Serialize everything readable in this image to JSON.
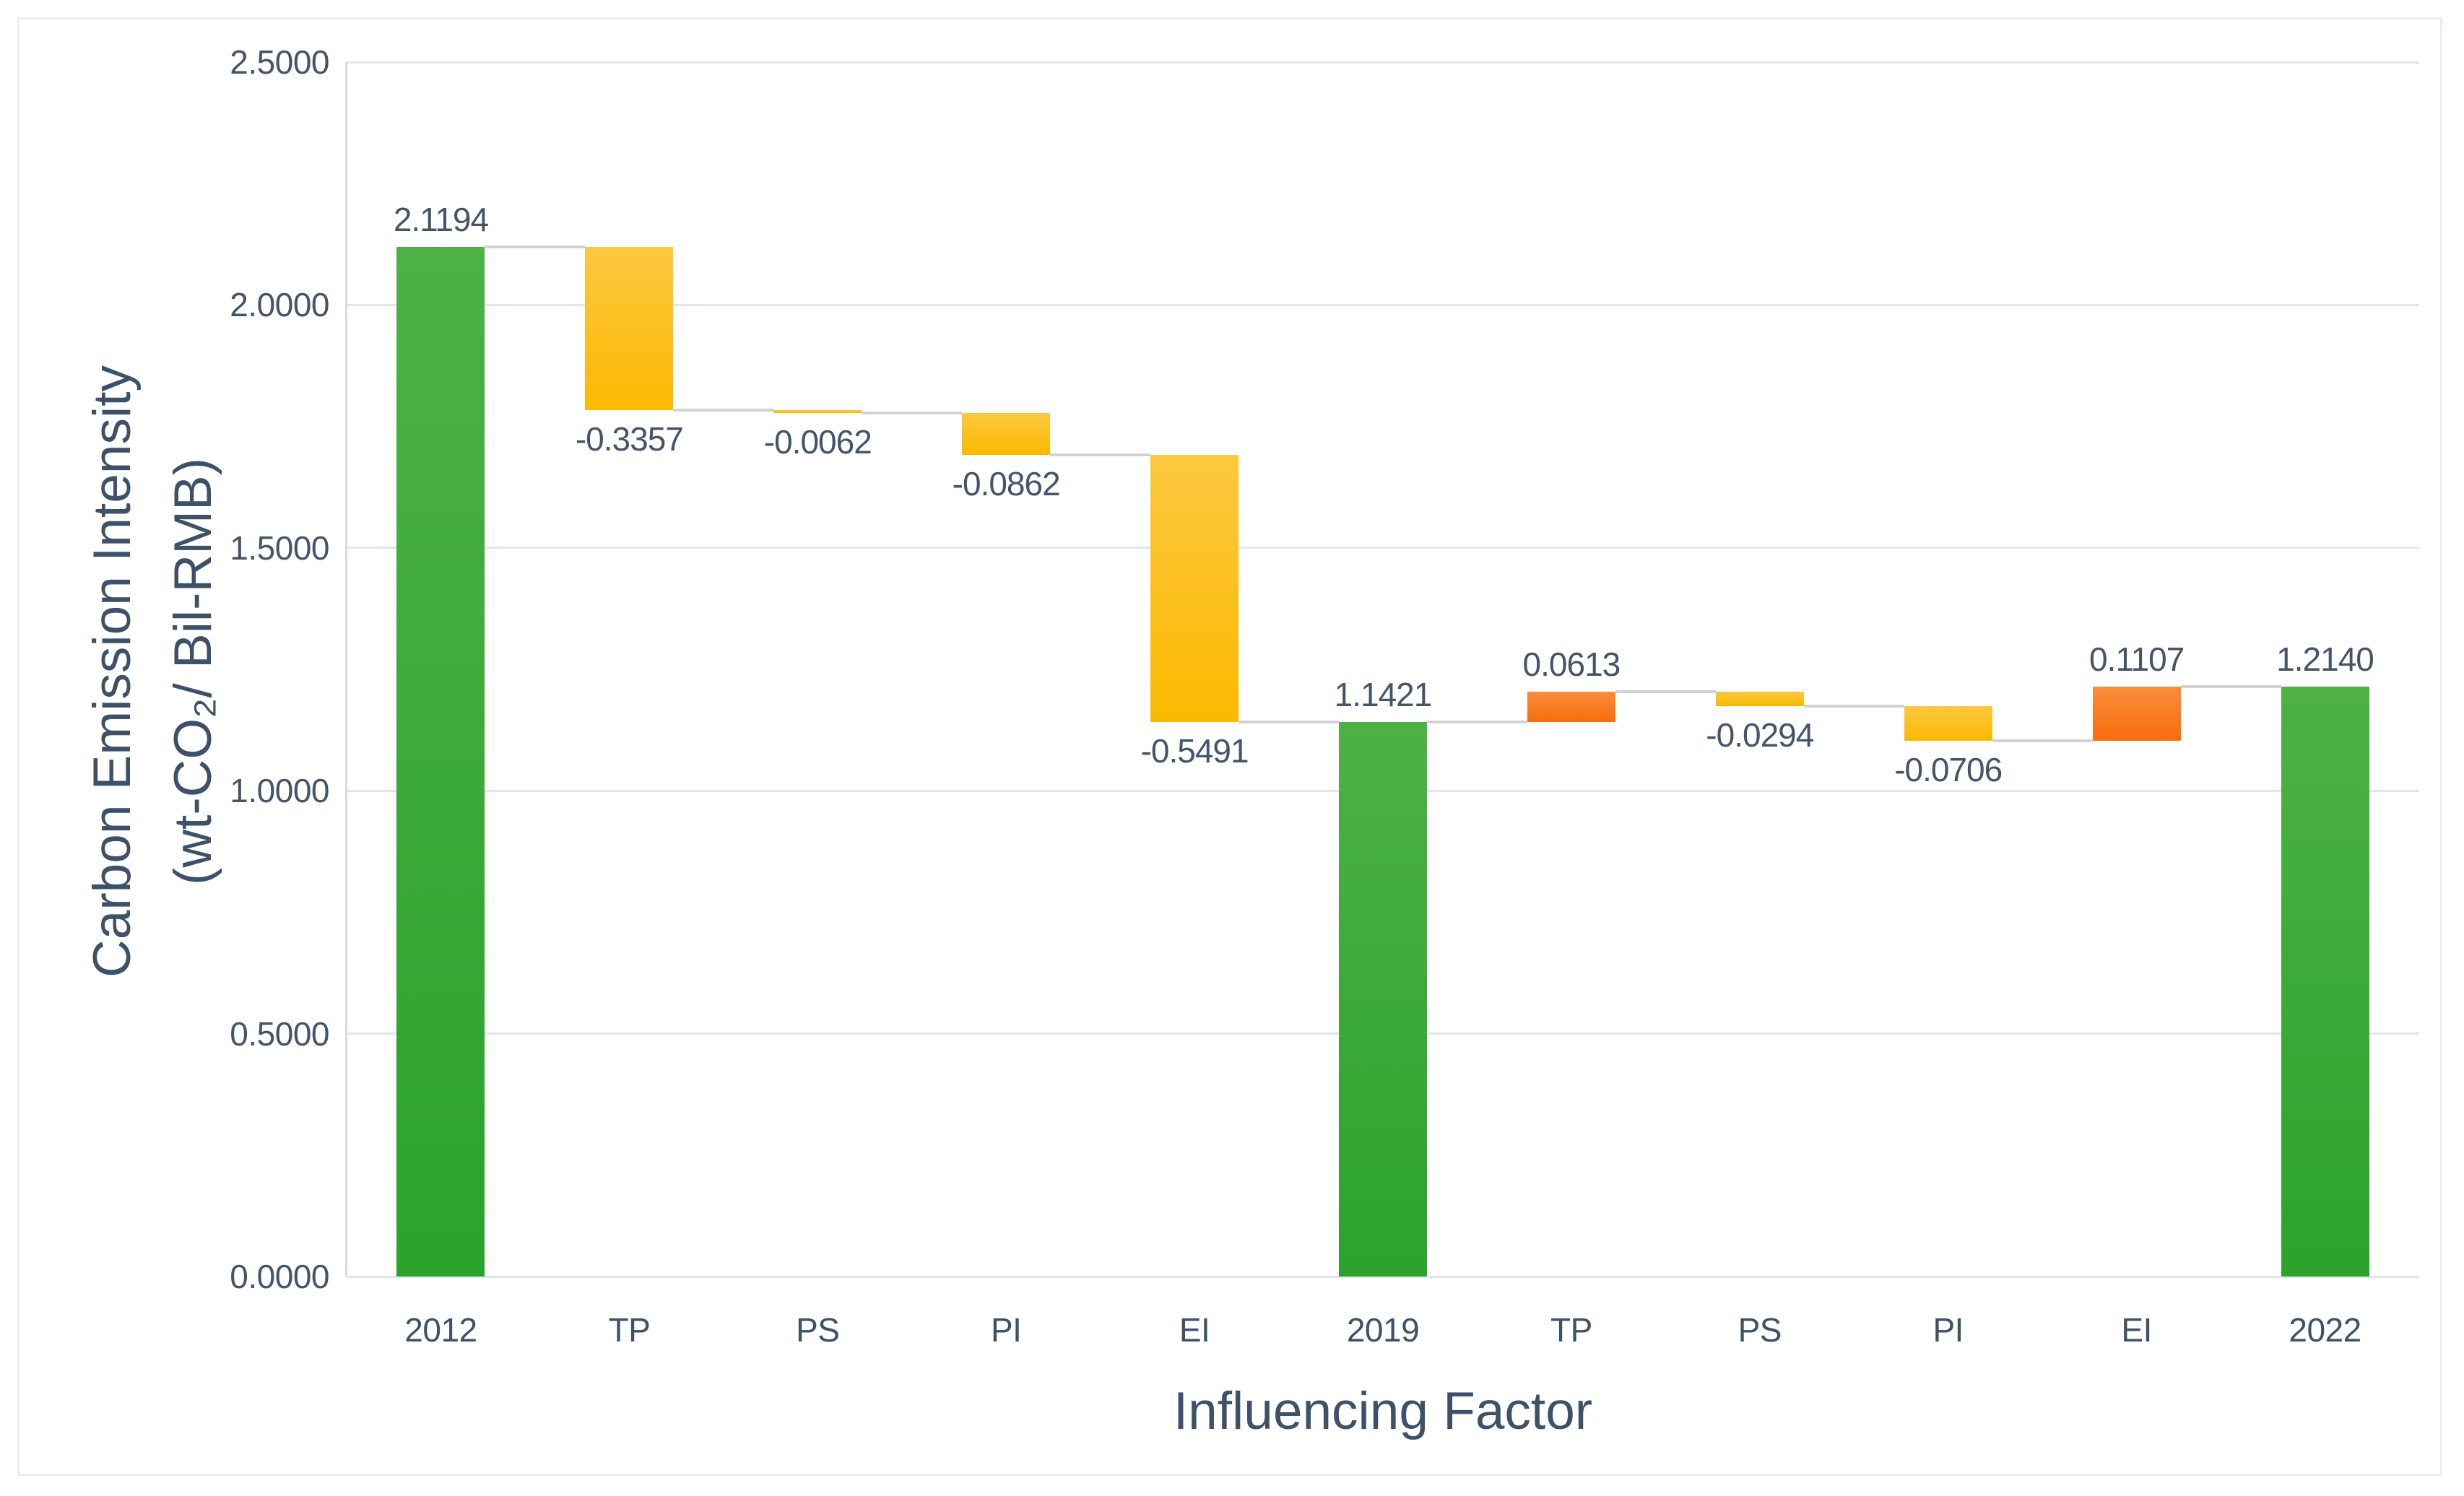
{
  "chart_data": {
    "type": "bar",
    "subtype": "waterfall",
    "title": "",
    "xlabel": "Influencing Factor",
    "ylabel_line1": "Carbon Emission Intensity",
    "ylabel_line2": "(wt-CO₂/ Bil-RMB)",
    "legend": "none",
    "grid": true,
    "categories": [
      "2012",
      "TP",
      "PS",
      "PI",
      "EI",
      "2019",
      "TP",
      "PS",
      "PI",
      "EI",
      "2022"
    ],
    "bars": [
      {
        "category": "2012",
        "value": 2.1194,
        "display": "2.1194",
        "kind": "total",
        "label_side": "above"
      },
      {
        "category": "TP",
        "value": -0.3357,
        "display": "-0.3357",
        "kind": "decrease",
        "label_side": "below"
      },
      {
        "category": "PS",
        "value": -0.0062,
        "display": "-0.0062",
        "kind": "decrease",
        "label_side": "below"
      },
      {
        "category": "PI",
        "value": -0.0862,
        "display": "-0.0862",
        "kind": "decrease",
        "label_side": "below"
      },
      {
        "category": "EI",
        "value": -0.5491,
        "display": "-0.5491",
        "kind": "decrease",
        "label_side": "below"
      },
      {
        "category": "2019",
        "value": 1.1421,
        "display": "1.1421",
        "kind": "total",
        "label_side": "above"
      },
      {
        "category": "TP",
        "value": 0.0613,
        "display": "0.0613",
        "kind": "increase",
        "label_side": "above"
      },
      {
        "category": "PS",
        "value": -0.0294,
        "display": "-0.0294",
        "kind": "decrease",
        "label_side": "below"
      },
      {
        "category": "PI",
        "value": -0.0706,
        "display": "-0.0706",
        "kind": "decrease",
        "label_side": "below"
      },
      {
        "category": "EI",
        "value": 0.1107,
        "display": "0.1107",
        "kind": "increase",
        "label_side": "above"
      },
      {
        "category": "2022",
        "value": 1.214,
        "display": "1.2140",
        "kind": "total",
        "label_side": "above"
      }
    ],
    "y_axis": {
      "min": 0,
      "max": 2.5,
      "tick_values": [
        0,
        0.5,
        1.0,
        1.5,
        2.0,
        2.5
      ],
      "tick_labels": [
        "0.0000",
        "0.5000",
        "1.0000",
        "1.5000",
        "2.0000",
        "2.5000"
      ]
    },
    "colors": {
      "total_top": "#4eb147",
      "total_bottom": "#2ba32b",
      "decrease_top": "#fdc840",
      "decrease_bottom": "#fbb900",
      "increase_top": "#fb8d3a",
      "increase_bottom": "#f76c0e",
      "connector": "#d2d2d2",
      "gridline": "#dfe6ee",
      "axis_line": "#d7dce2",
      "figure_border": "#e9edf1",
      "label_text": "#44546a",
      "title_text": "#3d5168"
    }
  }
}
